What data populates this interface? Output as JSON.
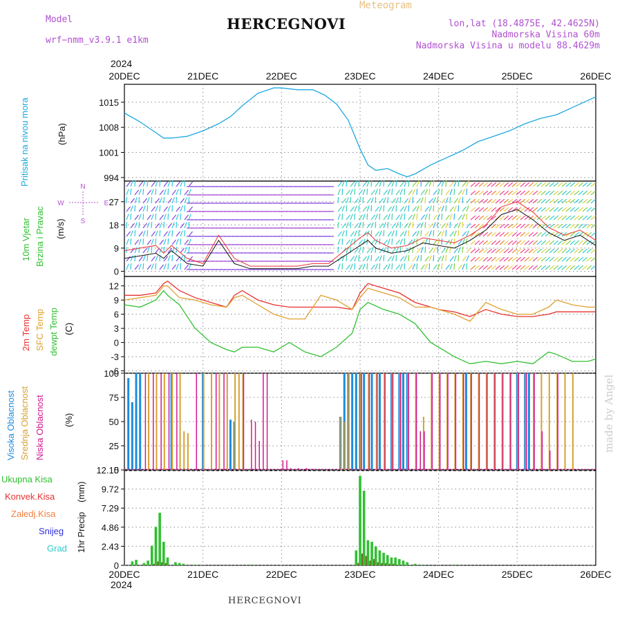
{
  "header": {
    "model_label": "Model",
    "model_name": "wrf−nmm_v3.9.1  e1km",
    "product": "Meteogram",
    "station": "HERCEGNOVI",
    "lonlat": "lon,lat (18.4875E, 42.4625N)",
    "elevation": "Nadmorska Visina 60m",
    "model_elevation": "Nadmorska Visina u modelu 88.4629m",
    "year_top": "2024",
    "year_bottom": "2024"
  },
  "footer": {
    "station": "HERCEGNOVI",
    "credit": "made by Angel"
  },
  "colors": {
    "pressure": "#1ca8e0",
    "temp2m": "#e83030",
    "sfc": "#e0a030",
    "dewpt": "#30c030",
    "cloud_high": "#1c8ce0",
    "cloud_mid": "#d8a030",
    "cloud_low": "#d01890",
    "precip_total": "#30c030",
    "precip_conv": "#e83030",
    "precip_strat": "#f08040",
    "snow": "#3030e0",
    "grad": "#30c8c8",
    "grid": "#888888"
  },
  "chart_data": [
    {
      "type": "line",
      "panel": "pressure",
      "y_label_left": "Pritisak na nivou mora",
      "unit": "(hPa)",
      "x_categories": [
        "20DEC",
        "21DEC",
        "22DEC",
        "23DEC",
        "24DEC",
        "25DEC",
        "26DEC"
      ],
      "ylim": [
        993,
        1020
      ],
      "yticks": [
        994,
        1001,
        1008,
        1015
      ],
      "x": [
        0,
        0.2,
        0.4,
        0.5,
        0.6,
        0.8,
        1.0,
        1.2,
        1.35,
        1.5,
        1.7,
        1.9,
        2.0,
        2.2,
        2.4,
        2.55,
        2.7,
        2.85,
        3.0,
        3.1,
        3.2,
        3.35,
        3.5,
        3.6,
        3.7,
        3.9,
        4.1,
        4.3,
        4.5,
        4.7,
        4.9,
        5.0,
        5.1,
        5.3,
        5.5,
        5.7,
        5.9,
        6.0
      ],
      "series": [
        {
          "values": [
            1012,
            1009.5,
            1006.5,
            1005,
            1005,
            1005.5,
            1007,
            1009,
            1011,
            1014,
            1017.5,
            1019,
            1019,
            1018.5,
            1018.5,
            1017,
            1014.5,
            1010,
            1002,
            997.5,
            996,
            996.5,
            995,
            994.2,
            995,
            997.5,
            999.5,
            1001.5,
            1004,
            1005.5,
            1007,
            1008,
            1009,
            1010.5,
            1011.5,
            1013.5,
            1015.5,
            1016.5
          ]
        }
      ]
    },
    {
      "type": "line",
      "panel": "wind",
      "y_label_left": "10m Vjetar",
      "y_label_left2": "Brzina i Pravac",
      "unit": "(m/s)",
      "compass": [
        "N",
        "E",
        "S",
        "W"
      ],
      "ylim": [
        -2,
        35
      ],
      "yticks": [
        0,
        9,
        18,
        27
      ],
      "note": "wind barbs, colored by speed",
      "x": [
        0,
        0.2,
        0.4,
        0.5,
        0.6,
        0.8,
        1.0,
        1.2,
        1.4,
        1.6,
        1.8,
        2.0,
        2.2,
        2.4,
        2.6,
        2.8,
        3.0,
        3.1,
        3.2,
        3.4,
        3.6,
        3.8,
        4.0,
        4.2,
        4.4,
        4.6,
        4.8,
        5.0,
        5.2,
        5.4,
        5.6,
        5.8,
        6.0
      ],
      "series": [
        {
          "values": [
            5,
            6,
            7,
            5,
            8,
            3,
            2,
            12,
            3,
            1,
            1,
            1,
            1,
            2,
            2,
            6,
            10,
            12,
            9,
            7,
            8,
            11,
            10,
            9,
            12,
            16,
            22,
            24,
            20,
            15,
            12,
            14,
            10
          ]
        },
        {
          "values": [
            8,
            9,
            10,
            7,
            10,
            5,
            3,
            14,
            5,
            2,
            2,
            2,
            2,
            3,
            3,
            8,
            13,
            15,
            12,
            9,
            10,
            13,
            12,
            11,
            14,
            18,
            25,
            27,
            23,
            17,
            14,
            16,
            12
          ]
        }
      ]
    },
    {
      "type": "line",
      "panel": "temperature",
      "y_label_left": "2m Temp",
      "y_label_left2": "SFC Temp",
      "y_label_left3": "dewpt Temp",
      "unit": "(C)",
      "ylim": [
        -6.5,
        14
      ],
      "yticks": [
        -6,
        -3,
        0,
        3,
        6,
        9,
        12
      ],
      "x": [
        0,
        0.2,
        0.4,
        0.5,
        0.55,
        0.7,
        0.9,
        1.1,
        1.3,
        1.4,
        1.5,
        1.7,
        1.9,
        2.1,
        2.3,
        2.5,
        2.7,
        2.9,
        3.0,
        3.1,
        3.3,
        3.5,
        3.7,
        3.9,
        4.0,
        4.2,
        4.4,
        4.6,
        4.8,
        5.0,
        5.2,
        5.4,
        5.5,
        5.7,
        5.9,
        6.0
      ],
      "series": [
        {
          "name": "2m Temp",
          "values": [
            10,
            10,
            10.5,
            12.5,
            13,
            11,
            9.5,
            8.5,
            7.5,
            10,
            11,
            9,
            8,
            7.5,
            7.5,
            7.5,
            7.5,
            7,
            10.5,
            12.5,
            11.5,
            10.5,
            8.5,
            7.5,
            7,
            6.5,
            5.5,
            7,
            6,
            5.5,
            5.5,
            6,
            6.5,
            6.5,
            6.5,
            6.5
          ]
        },
        {
          "name": "SFC Temp",
          "values": [
            9,
            9.5,
            10,
            12,
            12,
            9.5,
            9,
            8,
            7.5,
            9.5,
            10,
            8,
            6,
            5,
            5,
            10,
            9,
            7,
            9.5,
            11.5,
            10.5,
            9.5,
            7.5,
            7.5,
            7,
            6,
            4.5,
            8.5,
            7,
            6,
            6,
            7.5,
            9,
            8,
            7.5,
            7.5
          ]
        },
        {
          "name": "dewpt Temp",
          "values": [
            8,
            7.5,
            9,
            11,
            10,
            8,
            3,
            0,
            -1.5,
            -2,
            -1,
            -1,
            -2,
            0,
            -2,
            -3,
            -1,
            2,
            7,
            8.5,
            7,
            6,
            4,
            0,
            -1,
            -3,
            -4.5,
            -4,
            -4.5,
            -4,
            -4.5,
            -2,
            -2.5,
            -4,
            -4,
            -3.5
          ]
        }
      ]
    },
    {
      "type": "bar",
      "panel": "cloud",
      "y_label_left": "Visoka Oblacnost",
      "y_label_left2": "Srednja Oblacnost",
      "y_label_left3": "Niska Oblacnost",
      "unit": "(%)",
      "ylim": [
        0,
        100
      ],
      "yticks": [
        0,
        25,
        50,
        75,
        100
      ],
      "series": [
        {
          "name": "Visoka Oblacnost",
          "x": [
            0.05,
            0.1,
            0.15,
            0.2,
            0.6,
            1.0,
            1.35,
            1.4,
            2.75,
            2.8,
            2.85,
            2.9,
            2.95,
            3.0,
            3.05,
            3.15,
            3.25,
            3.4,
            3.5,
            3.55,
            3.6,
            4.35,
            5.0,
            5.1,
            5.15
          ],
          "values": [
            95,
            70,
            100,
            100,
            100,
            100,
            52,
            50,
            55,
            100,
            100,
            100,
            100,
            100,
            100,
            100,
            100,
            100,
            100,
            100,
            100,
            100,
            100,
            100,
            100
          ]
        },
        {
          "name": "Srednja Oblacnost",
          "x": [
            0.3,
            0.4,
            0.5,
            0.6,
            0.7,
            0.75,
            0.8,
            1.0,
            1.1,
            1.2,
            1.3,
            1.4,
            1.45,
            1.5,
            2.75,
            2.8,
            2.85,
            3.0,
            3.1,
            3.2,
            3.3,
            3.4,
            3.5,
            3.6,
            3.7,
            3.8,
            3.9,
            4.0,
            4.1,
            4.2,
            4.3,
            4.4,
            4.5,
            4.6,
            4.7,
            4.8,
            4.9,
            5.0,
            5.1,
            5.2,
            5.3,
            5.4,
            5.5,
            5.6,
            5.7
          ],
          "values": [
            100,
            100,
            100,
            100,
            100,
            40,
            38,
            100,
            100,
            100,
            100,
            100,
            100,
            100,
            55,
            50,
            100,
            100,
            100,
            100,
            100,
            100,
            100,
            100,
            100,
            55,
            100,
            100,
            100,
            100,
            100,
            100,
            100,
            100,
            100,
            100,
            100,
            100,
            100,
            100,
            100,
            100,
            100,
            100,
            100
          ]
        },
        {
          "name": "Niska Oblacnost",
          "x": [
            0.25,
            0.35,
            0.45,
            0.55,
            0.65,
            0.9,
            1.15,
            1.25,
            1.5,
            1.6,
            1.65,
            1.7,
            1.75,
            1.8,
            2.0,
            2.05,
            2.1,
            2.2,
            2.3,
            3.0,
            3.1,
            3.2,
            3.3,
            3.4,
            3.5,
            3.6,
            3.7,
            3.75,
            3.8,
            3.9,
            4.0,
            4.1,
            4.2,
            4.3,
            4.4,
            4.5,
            4.6,
            4.7,
            4.8,
            4.9,
            5.0,
            5.1,
            5.2,
            5.3,
            5.4,
            5.5
          ],
          "values": [
            100,
            100,
            100,
            100,
            100,
            100,
            100,
            100,
            100,
            52,
            50,
            30,
            100,
            100,
            10,
            10,
            2,
            2,
            2,
            100,
            100,
            100,
            100,
            100,
            100,
            100,
            100,
            40,
            40,
            100,
            100,
            100,
            100,
            100,
            100,
            100,
            100,
            100,
            100,
            100,
            100,
            100,
            100,
            40,
            20,
            100
          ]
        }
      ]
    },
    {
      "type": "bar",
      "panel": "precip",
      "legend": [
        "Ukupna Kisa",
        "Konvek.Kisa",
        "Zaledj.Kisa",
        "Snijeg",
        "Grad"
      ],
      "y_label_left": "1hr Precip",
      "unit": "(mm)",
      "ylim": [
        0,
        12.15
      ],
      "yticks": [
        0,
        2.43,
        4.86,
        7.29,
        9.72,
        12.15
      ],
      "x_categories": [
        "20DEC",
        "21DEC",
        "22DEC",
        "23DEC",
        "24DEC",
        "25DEC",
        "26DEC"
      ],
      "x": [
        0.1,
        0.15,
        0.25,
        0.3,
        0.35,
        0.4,
        0.45,
        0.5,
        0.55,
        0.65,
        0.7,
        0.75,
        0.9,
        1.6,
        2.95,
        3.0,
        3.05,
        3.1,
        3.15,
        3.2,
        3.25,
        3.3,
        3.35,
        3.4,
        3.45,
        3.5,
        3.55,
        3.6,
        3.7,
        3.8,
        4.2
      ],
      "series": [
        {
          "name": "Ukupna Kisa",
          "values": [
            0.5,
            0.7,
            0.3,
            0.6,
            2.5,
            4.9,
            6.7,
            3.0,
            1.0,
            0.4,
            0.3,
            0.2,
            0.1,
            0.1,
            1.9,
            11.4,
            9.5,
            3.2,
            3.0,
            2.4,
            1.9,
            1.6,
            1.3,
            1.0,
            1.0,
            0.8,
            0.6,
            0.4,
            0.2,
            0.1,
            0.1
          ]
        },
        {
          "name": "Konvek.Kisa",
          "values": [
            0,
            0,
            0,
            0,
            0.2,
            0.5,
            0.4,
            0.3,
            0,
            0,
            0,
            0,
            0,
            0,
            0.3,
            1.5,
            1.2,
            0.6,
            0.8,
            0.4,
            0.3,
            0.3,
            0.2,
            0.2,
            0,
            0,
            0,
            0,
            0,
            0,
            0
          ]
        }
      ]
    }
  ]
}
